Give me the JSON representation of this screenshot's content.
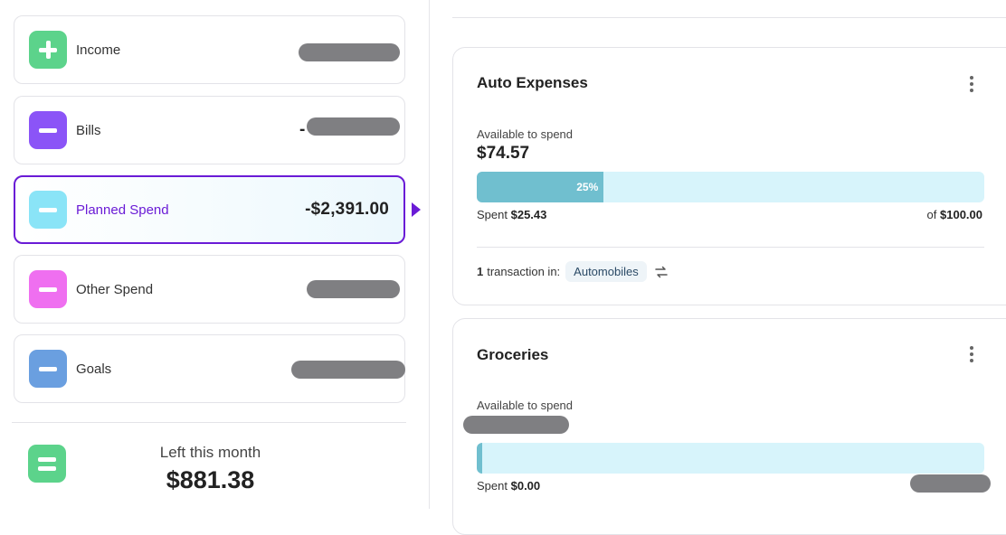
{
  "sidebar": {
    "income": {
      "label": "Income",
      "icon": "plus-icon",
      "color": "#5cd38b"
    },
    "bills": {
      "label": "Bills",
      "amount": "-",
      "icon": "minus-icon",
      "color": "#8b54f7"
    },
    "planned": {
      "label": "Planned Spend",
      "amount": "-$2,391.00",
      "icon": "minus-icon",
      "color": "#8ae4f7",
      "active_color": "#6a1bd6"
    },
    "other": {
      "label": "Other Spend",
      "icon": "minus-icon",
      "color": "#ef6ff0"
    },
    "goals": {
      "label": "Goals",
      "icon": "minus-icon",
      "color": "#6a9fe0"
    },
    "summary": {
      "label": "Left this month",
      "amount": "$881.38",
      "icon": "equals-icon",
      "color": "#5cd38b"
    }
  },
  "categories": [
    {
      "title": "Auto Expenses",
      "available_label": "Available to spend",
      "available_amount": "$74.57",
      "progress": 0.25,
      "progress_label": "25%",
      "spent_label": "Spent",
      "spent_amount": "$25.43",
      "of_label": "of",
      "of_amount": "$100.00",
      "tx_count": "1",
      "tx_text": "transaction in:",
      "tx_category": "Automobiles"
    },
    {
      "title": "Groceries",
      "available_label": "Available to spend",
      "progress": 0,
      "spent_label": "Spent",
      "spent_amount": "$0.00"
    }
  ],
  "colors": {
    "progress_fill": "#70bfcf",
    "progress_track": "#d7f4fb",
    "redaction": "#7f7f82"
  }
}
